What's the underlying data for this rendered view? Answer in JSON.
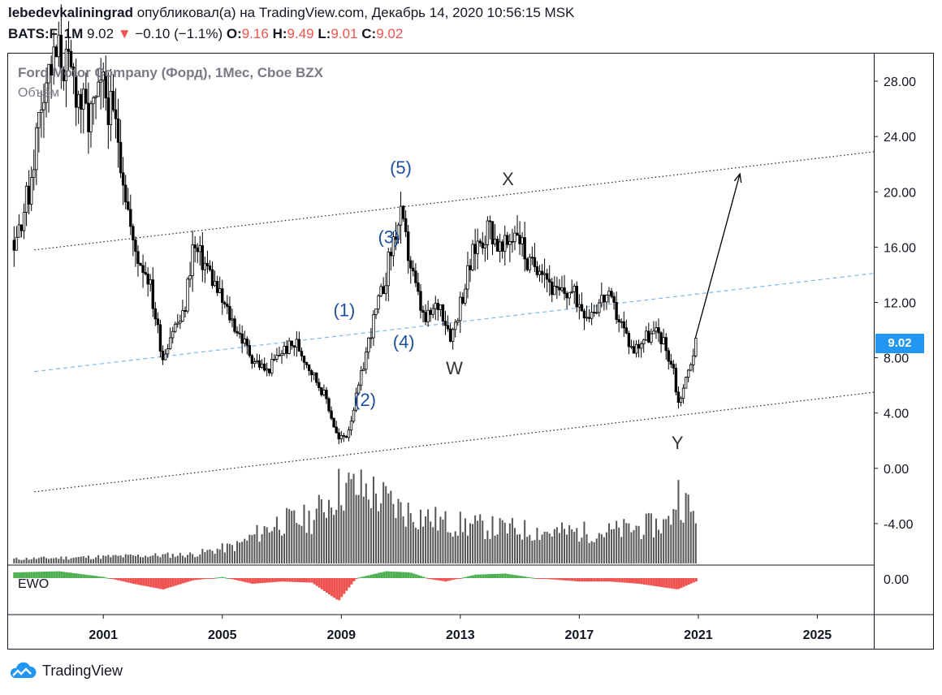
{
  "header": {
    "author": "lebedevkaliningrad",
    "published_text": "опубликовал(а) на TradingView.com, Декабрь 14, 2020 10:56:15 MSK",
    "symbol": "BATS:F, 1M",
    "last_price": "9.02",
    "change_arrow": "▼",
    "change": "−0.10 (−1.1%)",
    "open_label": "O:",
    "open": "9.16",
    "high_label": "H:",
    "high": "9.49",
    "low_label": "L:",
    "low": "9.01",
    "close_label": "C:",
    "close": "9.02"
  },
  "legend": {
    "title": "Ford Motor Company (Форд), 1Мес, Cboe BZX",
    "volume_label": "Объём",
    "ewo_label": "EWO"
  },
  "current_price_badge": "9.02",
  "brand": {
    "logo_text": "TradingView",
    "logo_icon": "cloud-logo-icon"
  },
  "colors": {
    "up": "#000000",
    "down": "#000000",
    "wave_label": "#1c4f9c",
    "corrective_label": "#333333",
    "ewo_positive": "#4caf50",
    "ewo_negative": "#ef5350",
    "midline": "#7ab8f5",
    "badge": "#2196f3"
  },
  "chart_data": {
    "type": "candlestick",
    "interval": "1M",
    "title": "Ford Motor Company (Форд), 1Мес, Cboe BZX",
    "x_ticks": [
      "2001",
      "2005",
      "2009",
      "2013",
      "2017",
      "2021",
      "2025"
    ],
    "y_ticks": [
      "28.00",
      "24.00",
      "20.00",
      "16.00",
      "12.00",
      "8.00",
      "4.00",
      "0.00",
      "-4.00"
    ],
    "ewo_ticks": [
      "0.00"
    ],
    "xlim": [
      1997.8,
      2026.9
    ],
    "ylim": [
      -7.0,
      30.0
    ],
    "price_path": [
      [
        1998.0,
        16.5
      ],
      [
        1998.5,
        20.0
      ],
      [
        1999.0,
        28.0
      ],
      [
        1999.5,
        30.0
      ],
      [
        2000.0,
        28.0
      ],
      [
        2000.5,
        25.0
      ],
      [
        2001.0,
        27.5
      ],
      [
        2001.5,
        24.0
      ],
      [
        2002.0,
        16.0
      ],
      [
        2002.5,
        14.0
      ],
      [
        2003.0,
        8.0
      ],
      [
        2003.3,
        10.0
      ],
      [
        2003.7,
        11.0
      ],
      [
        2004.0,
        16.0
      ],
      [
        2004.5,
        14.5
      ],
      [
        2005.0,
        12.0
      ],
      [
        2005.5,
        10.0
      ],
      [
        2006.0,
        8.0
      ],
      [
        2006.5,
        7.0
      ],
      [
        2007.0,
        8.5
      ],
      [
        2007.5,
        9.0
      ],
      [
        2008.0,
        7.0
      ],
      [
        2008.5,
        5.0
      ],
      [
        2008.9,
        2.0
      ],
      [
        2009.2,
        2.5
      ],
      [
        2009.6,
        6.0
      ],
      [
        2010.0,
        10.0
      ],
      [
        2010.4,
        13.0
      ],
      [
        2010.8,
        17.0
      ],
      [
        2011.0,
        18.0
      ],
      [
        2011.5,
        13.0
      ],
      [
        2011.8,
        10.5
      ],
      [
        2012.3,
        12.0
      ],
      [
        2012.7,
        9.5
      ],
      [
        2013.0,
        12.0
      ],
      [
        2013.5,
        16.0
      ],
      [
        2014.0,
        17.5
      ],
      [
        2014.4,
        15.5
      ],
      [
        2014.9,
        17.5
      ],
      [
        2015.3,
        14.5
      ],
      [
        2015.7,
        15.0
      ],
      [
        2016.2,
        12.5
      ],
      [
        2016.7,
        12.8
      ],
      [
        2017.3,
        11.2
      ],
      [
        2017.9,
        12.5
      ],
      [
        2018.3,
        11.0
      ],
      [
        2018.8,
        8.5
      ],
      [
        2019.2,
        9.5
      ],
      [
        2019.7,
        9.8
      ],
      [
        2020.2,
        7.0
      ],
      [
        2020.3,
        4.5
      ],
      [
        2020.6,
        6.5
      ],
      [
        2020.9,
        9.02
      ]
    ],
    "volume_path": [
      [
        1998.0,
        0.05
      ],
      [
        2004.0,
        0.1
      ],
      [
        2005.5,
        0.2
      ],
      [
        2006.8,
        0.45
      ],
      [
        2008.0,
        0.5
      ],
      [
        2009.0,
        0.85
      ],
      [
        2010.0,
        0.8
      ],
      [
        2011.0,
        0.6
      ],
      [
        2012.5,
        0.45
      ],
      [
        2014.0,
        0.4
      ],
      [
        2016.0,
        0.35
      ],
      [
        2018.0,
        0.35
      ],
      [
        2020.0,
        0.45
      ],
      [
        2020.3,
        0.8
      ],
      [
        2020.9,
        0.5
      ]
    ],
    "ewo_path": [
      [
        1998.0,
        0.5
      ],
      [
        1999.5,
        0.6
      ],
      [
        2001.0,
        0.1
      ],
      [
        2002.0,
        -0.5
      ],
      [
        2003.0,
        -1.0
      ],
      [
        2004.0,
        -0.2
      ],
      [
        2005.0,
        0.1
      ],
      [
        2006.0,
        -0.5
      ],
      [
        2007.0,
        -0.3
      ],
      [
        2008.0,
        -0.4
      ],
      [
        2008.9,
        -2.0
      ],
      [
        2009.5,
        0.0
      ],
      [
        2010.5,
        0.6
      ],
      [
        2011.3,
        0.5
      ],
      [
        2012.0,
        -0.1
      ],
      [
        2012.5,
        -0.3
      ],
      [
        2013.5,
        0.3
      ],
      [
        2014.5,
        0.4
      ],
      [
        2015.5,
        0.0
      ],
      [
        2017.0,
        -0.3
      ],
      [
        2018.0,
        -0.3
      ],
      [
        2019.0,
        -0.5
      ],
      [
        2020.3,
        -1.0
      ],
      [
        2020.9,
        -0.3
      ]
    ],
    "channel": {
      "upper": [
        [
          1998.0,
          15.8
        ],
        [
          2026.9,
          22.9
        ]
      ],
      "middle": [
        [
          1998.0,
          7.0
        ],
        [
          2026.9,
          14.1
        ]
      ],
      "lower": [
        [
          1998.0,
          -1.7
        ],
        [
          2026.9,
          5.5
        ]
      ]
    },
    "forecast_arrow": [
      [
        2020.9,
        9.4
      ],
      [
        2022.4,
        21.3
      ]
    ],
    "wave_labels": [
      {
        "text": "(5)",
        "x": 2011.0,
        "y": 21.3,
        "kind": "impulse"
      },
      {
        "text": "(3)",
        "x": 2010.6,
        "y": 16.3,
        "kind": "impulse"
      },
      {
        "text": "(1)",
        "x": 2009.1,
        "y": 11.0,
        "kind": "impulse"
      },
      {
        "text": "(4)",
        "x": 2011.1,
        "y": 8.7,
        "kind": "impulse"
      },
      {
        "text": "(2)",
        "x": 2009.8,
        "y": 4.5,
        "kind": "impulse"
      },
      {
        "text": "X",
        "x": 2014.6,
        "y": 20.5,
        "kind": "corrective"
      },
      {
        "text": "W",
        "x": 2012.8,
        "y": 6.8,
        "kind": "corrective"
      },
      {
        "text": "Y",
        "x": 2020.3,
        "y": 1.4,
        "kind": "corrective"
      }
    ]
  }
}
